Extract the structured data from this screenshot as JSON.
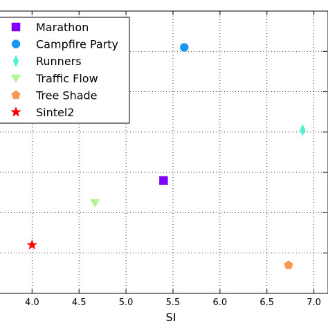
{
  "chart_data": {
    "type": "scatter",
    "xlabel": "SI",
    "ylabel": "",
    "xlim": [
      3.6,
      7.15
    ],
    "ylim": [
      0,
      7
    ],
    "x_ticks": [
      "4.0",
      "4.5",
      "5.0",
      "5.5",
      "6.0",
      "6.5",
      "7.0"
    ],
    "x_tick_values": [
      4.0,
      4.5,
      5.0,
      5.5,
      6.0,
      6.5,
      7.0
    ],
    "y_grid_values": [
      1,
      2,
      3,
      4,
      5,
      6
    ],
    "grid": "dotted",
    "legend_placement": "upper-left",
    "series": [
      {
        "name": "Marathon",
        "marker": "square",
        "color": "#8000ff",
        "points": [
          {
            "x": 5.4,
            "y": 2.8
          }
        ]
      },
      {
        "name": "Campfire Party",
        "marker": "circle",
        "color": "#1996f3",
        "points": [
          {
            "x": 5.62,
            "y": 6.1
          }
        ]
      },
      {
        "name": "Runners",
        "marker": "thin_diamond",
        "color": "#4df3ce",
        "points": [
          {
            "x": 6.88,
            "y": 4.05
          }
        ]
      },
      {
        "name": "Traffic Flow",
        "marker": "triangle_down",
        "color": "#b2f396",
        "points": [
          {
            "x": 4.67,
            "y": 2.25
          }
        ]
      },
      {
        "name": "Tree Shade",
        "marker": "pentagon",
        "color": "#ff964f",
        "points": [
          {
            "x": 6.73,
            "y": 0.7
          }
        ]
      },
      {
        "name": "Sintel2",
        "marker": "star",
        "color": "#ff0000",
        "points": [
          {
            "x": 4.0,
            "y": 1.2
          }
        ]
      }
    ]
  }
}
